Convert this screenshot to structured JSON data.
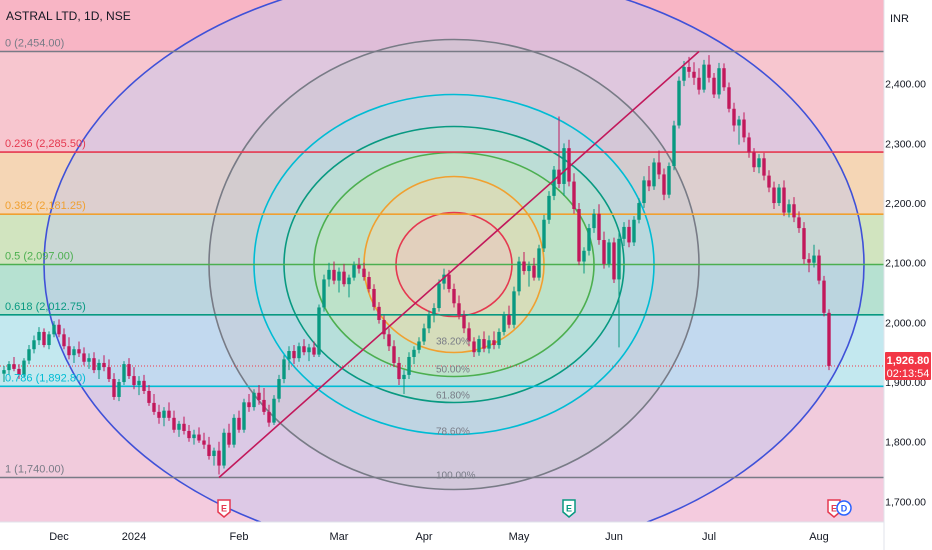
{
  "chart_data": {
    "type": "candlestick",
    "title": "ASTRAL LTD, 1D, NSE",
    "currency": "INR",
    "ylim": [
      1680,
      2530
    ],
    "y_ticks": [
      1700,
      1800,
      1900,
      2000,
      2100,
      2200,
      2300,
      2400
    ],
    "y_tick_labels": [
      "1,700.00",
      "1,800.00",
      "1,900.00",
      "2,000.00",
      "2,100.00",
      "2,200.00",
      "2,300.00",
      "2,400.00"
    ],
    "x_ticks": [
      {
        "label": "Dec",
        "i": 11
      },
      {
        "label": "2024",
        "i": 26
      },
      {
        "label": "Feb",
        "i": 47
      },
      {
        "label": "Mar",
        "i": 67
      },
      {
        "label": "Apr",
        "i": 84
      },
      {
        "label": "May",
        "i": 103
      },
      {
        "label": "Jun",
        "i": 122
      },
      {
        "label": "Jul",
        "i": 141
      },
      {
        "label": "Aug",
        "i": 163
      }
    ],
    "last_price": {
      "value": 1926.8,
      "label": "1,926.80",
      "countdown": "02:13:54"
    },
    "fib_levels": [
      {
        "label": "0 (2,454.00)",
        "value": 2454,
        "color": "#787b86"
      },
      {
        "label": "0.236 (2,285.50)",
        "value": 2285.5,
        "color": "#e53950"
      },
      {
        "label": "0.382 (2,181.25)",
        "value": 2181.25,
        "color": "#f0a030"
      },
      {
        "label": "0.5 (2,097.00)",
        "value": 2097,
        "color": "#4caf50"
      },
      {
        "label": "0.618 (2,012.75)",
        "value": 2012.75,
        "color": "#089981"
      },
      {
        "label": "0.786 (1,892.80)",
        "value": 1892.8,
        "color": "#00bcd4"
      },
      {
        "label": "1 (1,740.00)",
        "value": 1740,
        "color": "#787b86"
      }
    ],
    "fib_circles": {
      "center": {
        "i": 90,
        "value": 2097
      },
      "labels": [
        {
          "text": "38.20%",
          "r": 0.382
        },
        {
          "text": "50.00%",
          "r": 0.5
        },
        {
          "text": "61.80%",
          "r": 0.618
        },
        {
          "text": "78.60%",
          "r": 0.786
        },
        {
          "text": "100.00%",
          "r": 1.0
        }
      ]
    },
    "trend_line": {
      "from": {
        "i": 43,
        "value": 1740
      },
      "to": {
        "i": 139,
        "value": 2454
      }
    },
    "events": [
      {
        "type": "E",
        "i": 44,
        "color": "#e53950"
      },
      {
        "type": "E",
        "i": 113,
        "color": "#089981"
      },
      {
        "type": "E",
        "i": 166,
        "color": "#e53950"
      },
      {
        "type": "D",
        "i": 168,
        "color": "#2962ff"
      }
    ],
    "candles": [
      [
        1914,
        1927,
        1900,
        1920
      ],
      [
        1920,
        1935,
        1912,
        1930
      ],
      [
        1930,
        1942,
        1918,
        1922
      ],
      [
        1922,
        1930,
        1905,
        1912
      ],
      [
        1912,
        1940,
        1908,
        1936
      ],
      [
        1936,
        1962,
        1930,
        1955
      ],
      [
        1955,
        1978,
        1948,
        1970
      ],
      [
        1970,
        1992,
        1962,
        1984
      ],
      [
        1984,
        1990,
        1958,
        1962
      ],
      [
        1962,
        1985,
        1955,
        1980
      ],
      [
        1980,
        2002,
        1975,
        1996
      ],
      [
        1996,
        2005,
        1975,
        1980
      ],
      [
        1980,
        1990,
        1955,
        1960
      ],
      [
        1960,
        1975,
        1938,
        1945
      ],
      [
        1945,
        1960,
        1932,
        1955
      ],
      [
        1955,
        1968,
        1942,
        1948
      ],
      [
        1948,
        1958,
        1928,
        1934
      ],
      [
        1934,
        1948,
        1922,
        1940
      ],
      [
        1940,
        1950,
        1915,
        1920
      ],
      [
        1920,
        1938,
        1905,
        1932
      ],
      [
        1932,
        1945,
        1918,
        1925
      ],
      [
        1925,
        1938,
        1900,
        1905
      ],
      [
        1905,
        1915,
        1870,
        1875
      ],
      [
        1875,
        1905,
        1868,
        1900
      ],
      [
        1900,
        1935,
        1895,
        1930
      ],
      [
        1930,
        1940,
        1905,
        1910
      ],
      [
        1910,
        1925,
        1888,
        1895
      ],
      [
        1895,
        1910,
        1878,
        1902
      ],
      [
        1902,
        1912,
        1880,
        1885
      ],
      [
        1885,
        1895,
        1860,
        1865
      ],
      [
        1865,
        1880,
        1845,
        1850
      ],
      [
        1850,
        1862,
        1830,
        1840
      ],
      [
        1840,
        1858,
        1826,
        1852
      ],
      [
        1852,
        1866,
        1835,
        1840
      ],
      [
        1840,
        1852,
        1815,
        1820
      ],
      [
        1820,
        1835,
        1808,
        1830
      ],
      [
        1830,
        1842,
        1812,
        1818
      ],
      [
        1818,
        1828,
        1800,
        1806
      ],
      [
        1806,
        1820,
        1795,
        1812
      ],
      [
        1812,
        1824,
        1798,
        1802
      ],
      [
        1802,
        1815,
        1788,
        1795
      ],
      [
        1795,
        1808,
        1770,
        1776
      ],
      [
        1776,
        1790,
        1760,
        1785
      ],
      [
        1785,
        1800,
        1745,
        1760
      ],
      [
        1760,
        1822,
        1755,
        1815
      ],
      [
        1815,
        1830,
        1790,
        1795
      ],
      [
        1795,
        1846,
        1790,
        1840
      ],
      [
        1840,
        1852,
        1815,
        1820
      ],
      [
        1820,
        1872,
        1815,
        1866
      ],
      [
        1866,
        1880,
        1850,
        1858
      ],
      [
        1858,
        1888,
        1852,
        1882
      ],
      [
        1882,
        1895,
        1862,
        1870
      ],
      [
        1870,
        1890,
        1845,
        1850
      ],
      [
        1850,
        1862,
        1825,
        1832
      ],
      [
        1832,
        1878,
        1828,
        1872
      ],
      [
        1872,
        1912,
        1866,
        1905
      ],
      [
        1905,
        1945,
        1898,
        1938
      ],
      [
        1938,
        1960,
        1920,
        1952
      ],
      [
        1952,
        1962,
        1930,
        1940
      ],
      [
        1940,
        1966,
        1934,
        1960
      ],
      [
        1960,
        1972,
        1945,
        1950
      ],
      [
        1950,
        1964,
        1935,
        1958
      ],
      [
        1958,
        1968,
        1942,
        1946
      ],
      [
        1946,
        2030,
        1942,
        2025
      ],
      [
        2025,
        2080,
        2018,
        2072
      ],
      [
        2072,
        2100,
        2060,
        2088
      ],
      [
        2088,
        2102,
        2064,
        2070
      ],
      [
        2070,
        2092,
        2050,
        2085
      ],
      [
        2085,
        2098,
        2060,
        2064
      ],
      [
        2064,
        2080,
        2042,
        2075
      ],
      [
        2075,
        2102,
        2070,
        2096
      ],
      [
        2096,
        2108,
        2082,
        2090
      ],
      [
        2090,
        2100,
        2070,
        2076
      ],
      [
        2076,
        2085,
        2050,
        2056
      ],
      [
        2056,
        2064,
        2020,
        2026
      ],
      [
        2026,
        2034,
        1998,
        2004
      ],
      [
        2004,
        2012,
        1972,
        1980
      ],
      [
        1980,
        1990,
        1952,
        1960
      ],
      [
        1960,
        1970,
        1925,
        1932
      ],
      [
        1932,
        1942,
        1895,
        1905
      ],
      [
        1905,
        1920,
        1880,
        1912
      ],
      [
        1912,
        1950,
        1905,
        1942
      ],
      [
        1942,
        1960,
        1930,
        1954
      ],
      [
        1954,
        1975,
        1948,
        1968
      ],
      [
        1968,
        1998,
        1962,
        1990
      ],
      [
        1990,
        2020,
        1982,
        2012
      ],
      [
        2012,
        2032,
        2000,
        2024
      ],
      [
        2024,
        2072,
        2018,
        2065
      ],
      [
        2065,
        2090,
        2055,
        2080
      ],
      [
        2080,
        2088,
        2050,
        2056
      ],
      [
        2056,
        2065,
        2025,
        2032
      ],
      [
        2032,
        2045,
        2005,
        2012
      ],
      [
        2012,
        2020,
        1982,
        1990
      ],
      [
        1990,
        2000,
        1960,
        1968
      ],
      [
        1968,
        1975,
        1942,
        1950
      ],
      [
        1950,
        1978,
        1944,
        1972
      ],
      [
        1972,
        1985,
        1950,
        1956
      ],
      [
        1956,
        1978,
        1948,
        1970
      ],
      [
        1970,
        1985,
        1955,
        1962
      ],
      [
        1962,
        1990,
        1956,
        1984
      ],
      [
        1984,
        2018,
        1978,
        2012
      ],
      [
        2012,
        2028,
        1990,
        1996
      ],
      [
        1996,
        2060,
        1990,
        2052
      ],
      [
        2052,
        2110,
        2045,
        2102
      ],
      [
        2102,
        2118,
        2080,
        2086
      ],
      [
        2086,
        2102,
        2060,
        2095
      ],
      [
        2095,
        2108,
        2070,
        2075
      ],
      [
        2075,
        2130,
        2070,
        2124
      ],
      [
        2124,
        2180,
        2118,
        2172
      ],
      [
        2172,
        2220,
        2165,
        2212
      ],
      [
        2212,
        2262,
        2205,
        2256
      ],
      [
        2256,
        2345,
        2225,
        2232
      ],
      [
        2232,
        2300,
        2212,
        2292
      ],
      [
        2292,
        2306,
        2228,
        2236
      ],
      [
        2236,
        2250,
        2182,
        2190
      ],
      [
        2190,
        2200,
        2096,
        2102
      ],
      [
        2102,
        2126,
        2082,
        2120
      ],
      [
        2120,
        2165,
        2112,
        2158
      ],
      [
        2158,
        2190,
        2150,
        2182
      ],
      [
        2182,
        2198,
        2130,
        2138
      ],
      [
        2138,
        2152,
        2090,
        2098
      ],
      [
        2098,
        2140,
        2092,
        2134
      ],
      [
        2134,
        2142,
        2066,
        2072
      ],
      [
        2072,
        2150,
        1958,
        2140
      ],
      [
        2140,
        2168,
        2128,
        2160
      ],
      [
        2160,
        2172,
        2126,
        2134
      ],
      [
        2134,
        2178,
        2128,
        2172
      ],
      [
        2172,
        2208,
        2166,
        2200
      ],
      [
        2200,
        2245,
        2192,
        2238
      ],
      [
        2238,
        2262,
        2220,
        2228
      ],
      [
        2228,
        2275,
        2222,
        2268
      ],
      [
        2268,
        2288,
        2240,
        2248
      ],
      [
        2248,
        2258,
        2205,
        2214
      ],
      [
        2214,
        2268,
        2208,
        2262
      ],
      [
        2262,
        2338,
        2255,
        2330
      ],
      [
        2330,
        2412,
        2325,
        2405
      ],
      [
        2405,
        2438,
        2396,
        2428
      ],
      [
        2428,
        2445,
        2410,
        2420
      ],
      [
        2420,
        2436,
        2398,
        2410
      ],
      [
        2410,
        2426,
        2382,
        2390
      ],
      [
        2390,
        2440,
        2385,
        2432
      ],
      [
        2432,
        2448,
        2402,
        2410
      ],
      [
        2410,
        2418,
        2376,
        2382
      ],
      [
        2382,
        2435,
        2375,
        2426
      ],
      [
        2426,
        2434,
        2388,
        2394
      ],
      [
        2394,
        2402,
        2352,
        2358
      ],
      [
        2358,
        2368,
        2320,
        2330
      ],
      [
        2330,
        2346,
        2298,
        2340
      ],
      [
        2340,
        2352,
        2302,
        2310
      ],
      [
        2310,
        2318,
        2276,
        2285
      ],
      [
        2285,
        2292,
        2252,
        2260
      ],
      [
        2260,
        2282,
        2250,
        2275
      ],
      [
        2275,
        2284,
        2238,
        2246
      ],
      [
        2246,
        2255,
        2218,
        2226
      ],
      [
        2226,
        2236,
        2190,
        2200
      ],
      [
        2200,
        2232,
        2195,
        2226
      ],
      [
        2226,
        2238,
        2178,
        2184
      ],
      [
        2184,
        2206,
        2176,
        2198
      ],
      [
        2198,
        2210,
        2168,
        2176
      ],
      [
        2176,
        2186,
        2150,
        2158
      ],
      [
        2158,
        2168,
        2098,
        2106
      ],
      [
        2106,
        2116,
        2084,
        2100
      ],
      [
        2100,
        2130,
        2092,
        2112
      ],
      [
        2112,
        2122,
        2064,
        2070
      ],
      [
        2070,
        2078,
        2010,
        2016
      ],
      [
        2016,
        2022,
        1920,
        1927
      ]
    ]
  }
}
